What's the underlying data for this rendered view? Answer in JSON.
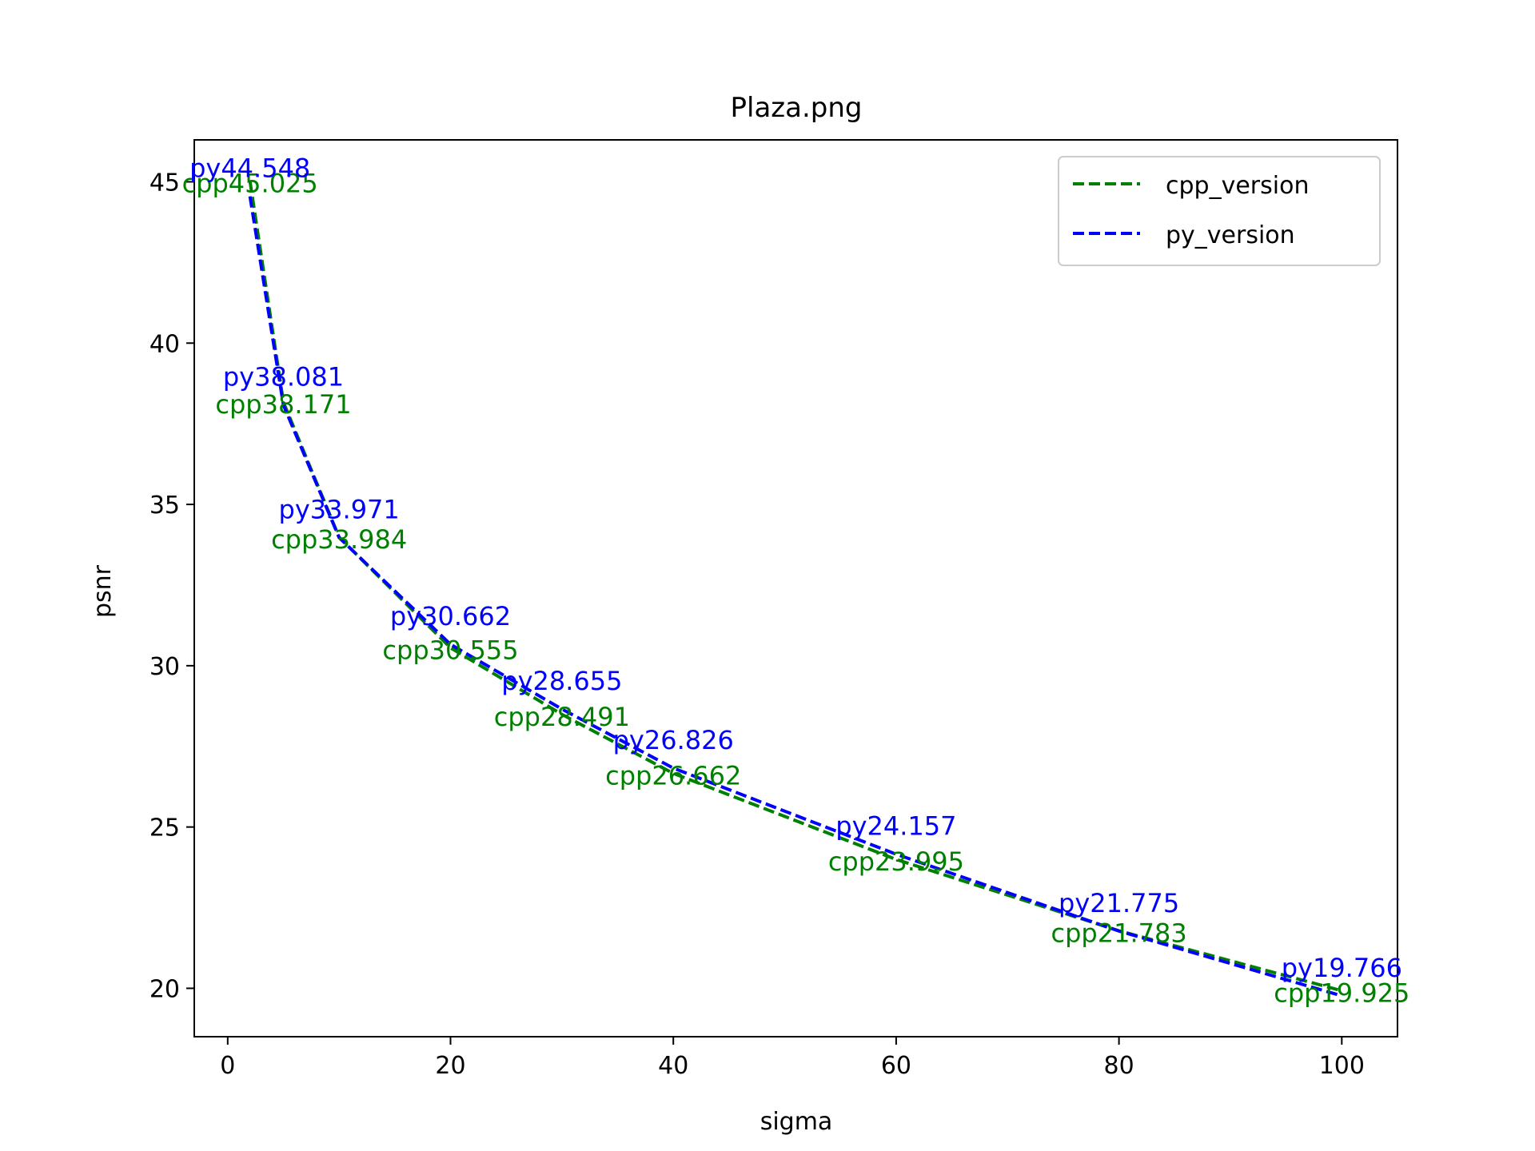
{
  "chart_data": {
    "type": "line",
    "title": "Plaza.png",
    "xlabel": "sigma",
    "ylabel": "psnr",
    "xlim": [
      -3,
      105
    ],
    "ylim": [
      18.5,
      46.3
    ],
    "xticks": [
      0,
      20,
      40,
      60,
      80,
      100
    ],
    "yticks": [
      20,
      25,
      30,
      35,
      40,
      45
    ],
    "legend_position": "top-right",
    "x": [
      2,
      5,
      10,
      20,
      30,
      40,
      60,
      80,
      100
    ],
    "series": [
      {
        "name": "cpp_version",
        "color": "#008000",
        "style": "dashed",
        "values": [
          45.025,
          38.171,
          33.984,
          30.555,
          28.491,
          26.662,
          23.995,
          21.783,
          19.925
        ],
        "labels": [
          "cpp45.025",
          "cpp38.171",
          "cpp33.984",
          "cpp30.555",
          "cpp28.491",
          "cpp26.662",
          "cpp23.995",
          "cpp21.783",
          "cpp19.925"
        ]
      },
      {
        "name": "py_version",
        "color": "#0000ff",
        "style": "dashed",
        "values": [
          44.548,
          38.081,
          33.971,
          30.662,
          28.655,
          26.826,
          24.157,
          21.775,
          19.766
        ],
        "labels": [
          "py44.548",
          "py38.081",
          "py33.971",
          "py30.662",
          "py28.655",
          "py26.826",
          "py24.157",
          "py21.775",
          "py19.766"
        ]
      }
    ]
  }
}
